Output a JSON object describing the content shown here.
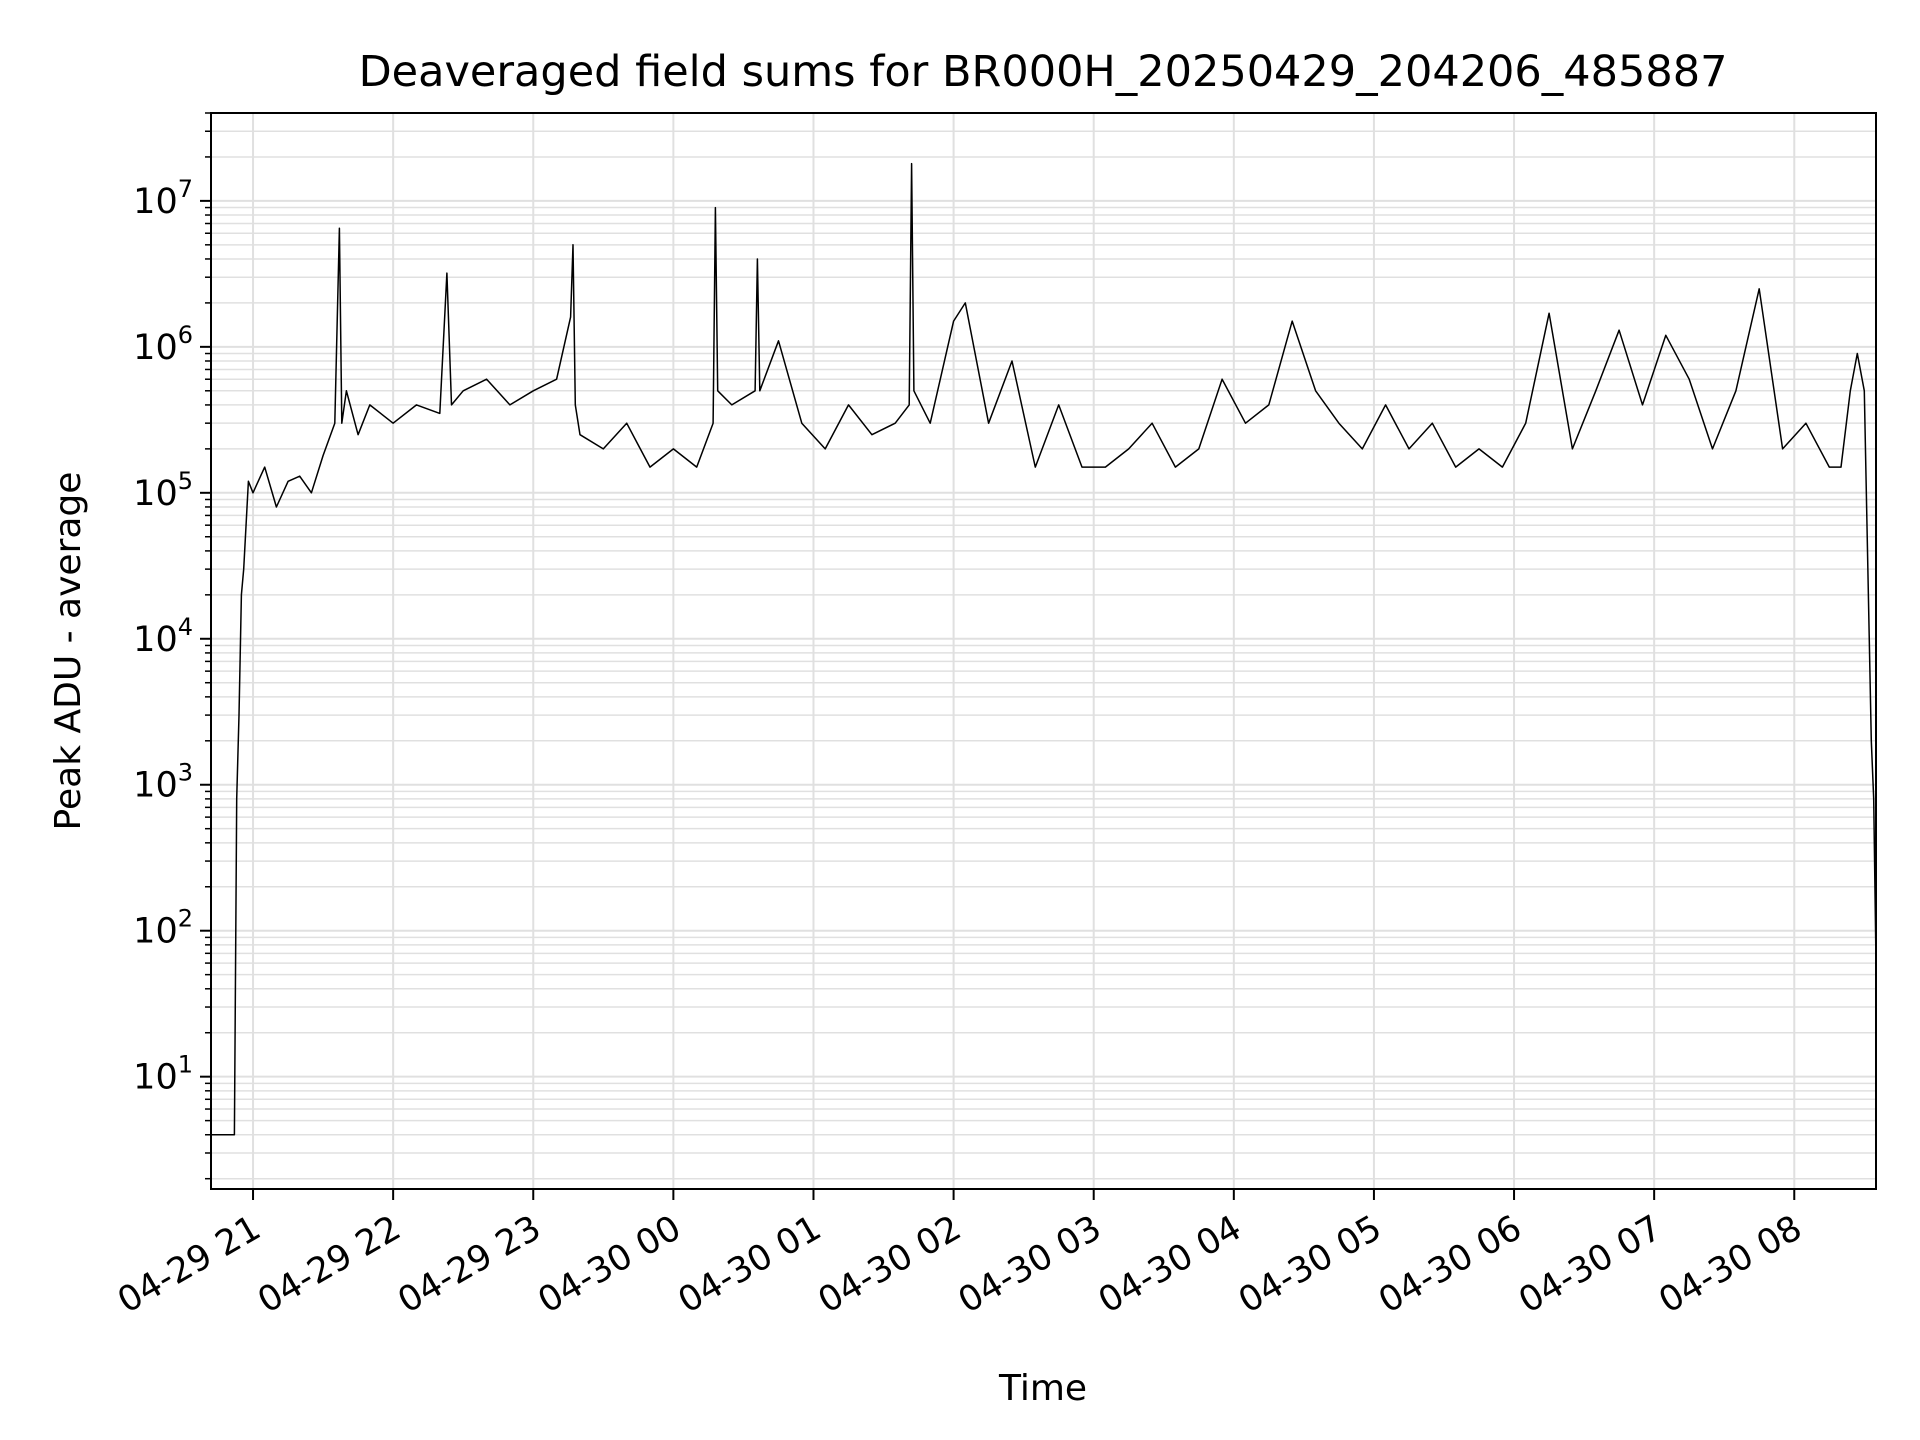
{
  "chart_data": {
    "type": "line",
    "title": "Deaveraged field sums for BR000H_20250429_204206_485887",
    "xlabel": "Time",
    "ylabel": "Peak ADU - average",
    "yscale": "log",
    "ylim": [
      1.7,
      40000000
    ],
    "xlim": [
      "2025-04-29 20:42",
      "2025-04-30 08:35"
    ],
    "grid": true,
    "line_color": "#000000",
    "x_ticks": [
      {
        "value": "2025-04-29 21:00",
        "label": "04-29 21"
      },
      {
        "value": "2025-04-29 22:00",
        "label": "04-29 22"
      },
      {
        "value": "2025-04-29 23:00",
        "label": "04-29 23"
      },
      {
        "value": "2025-04-30 00:00",
        "label": "04-30 00"
      },
      {
        "value": "2025-04-30 01:00",
        "label": "04-30 01"
      },
      {
        "value": "2025-04-30 02:00",
        "label": "04-30 02"
      },
      {
        "value": "2025-04-30 03:00",
        "label": "04-30 03"
      },
      {
        "value": "2025-04-30 04:00",
        "label": "04-30 04"
      },
      {
        "value": "2025-04-30 05:00",
        "label": "04-30 05"
      },
      {
        "value": "2025-04-30 06:00",
        "label": "04-30 06"
      },
      {
        "value": "2025-04-30 07:00",
        "label": "04-30 07"
      },
      {
        "value": "2025-04-30 08:00",
        "label": "04-30 08"
      }
    ],
    "y_ticks": [
      {
        "value": 10,
        "base": "10",
        "exp": "1"
      },
      {
        "value": 100,
        "base": "10",
        "exp": "2"
      },
      {
        "value": 1000,
        "base": "10",
        "exp": "3"
      },
      {
        "value": 10000,
        "base": "10",
        "exp": "4"
      },
      {
        "value": 100000,
        "base": "10",
        "exp": "5"
      },
      {
        "value": 1000000,
        "base": "10",
        "exp": "6"
      },
      {
        "value": 10000000,
        "base": "10",
        "exp": "7"
      }
    ],
    "series": [
      {
        "x": [
          "2025-04-29 20:42",
          "2025-04-29 20:52",
          "2025-04-29 20:53",
          "2025-04-29 20:54",
          "2025-04-29 20:55",
          "2025-04-29 20:56",
          "2025-04-29 20:58",
          "2025-04-29 21:00",
          "2025-04-29 21:05",
          "2025-04-29 21:10",
          "2025-04-29 21:15",
          "2025-04-29 21:20",
          "2025-04-29 21:25",
          "2025-04-29 21:30",
          "2025-04-29 21:35",
          "2025-04-29 21:37",
          "2025-04-29 21:38",
          "2025-04-29 21:40",
          "2025-04-29 21:45",
          "2025-04-29 21:50",
          "2025-04-29 22:00",
          "2025-04-29 22:10",
          "2025-04-29 22:20",
          "2025-04-29 22:23",
          "2025-04-29 22:25",
          "2025-04-29 22:30",
          "2025-04-29 22:40",
          "2025-04-29 22:50",
          "2025-04-29 23:00",
          "2025-04-29 23:10",
          "2025-04-29 23:16",
          "2025-04-29 23:17",
          "2025-04-29 23:18",
          "2025-04-29 23:20",
          "2025-04-29 23:30",
          "2025-04-29 23:40",
          "2025-04-29 23:50",
          "2025-04-30 00:00",
          "2025-04-30 00:10",
          "2025-04-30 00:17",
          "2025-04-30 00:18",
          "2025-04-30 00:19",
          "2025-04-30 00:25",
          "2025-04-30 00:35",
          "2025-04-30 00:36",
          "2025-04-30 00:37",
          "2025-04-30 00:45",
          "2025-04-30 00:55",
          "2025-04-30 01:05",
          "2025-04-30 01:15",
          "2025-04-30 01:25",
          "2025-04-30 01:35",
          "2025-04-30 01:41",
          "2025-04-30 01:42",
          "2025-04-30 01:43",
          "2025-04-30 01:50",
          "2025-04-30 02:00",
          "2025-04-30 02:05",
          "2025-04-30 02:15",
          "2025-04-30 02:25",
          "2025-04-30 02:35",
          "2025-04-30 02:45",
          "2025-04-30 02:55",
          "2025-04-30 03:05",
          "2025-04-30 03:15",
          "2025-04-30 03:25",
          "2025-04-30 03:35",
          "2025-04-30 03:45",
          "2025-04-30 03:55",
          "2025-04-30 04:05",
          "2025-04-30 04:15",
          "2025-04-30 04:25",
          "2025-04-30 04:35",
          "2025-04-30 04:45",
          "2025-04-30 04:55",
          "2025-04-30 05:05",
          "2025-04-30 05:15",
          "2025-04-30 05:25",
          "2025-04-30 05:35",
          "2025-04-30 05:45",
          "2025-04-30 05:55",
          "2025-04-30 06:05",
          "2025-04-30 06:15",
          "2025-04-30 06:25",
          "2025-04-30 06:35",
          "2025-04-30 06:45",
          "2025-04-30 06:55",
          "2025-04-30 07:05",
          "2025-04-30 07:15",
          "2025-04-30 07:25",
          "2025-04-30 07:35",
          "2025-04-30 07:45",
          "2025-04-30 07:55",
          "2025-04-30 08:05",
          "2025-04-30 08:15",
          "2025-04-30 08:20",
          "2025-04-30 08:24",
          "2025-04-30 08:27",
          "2025-04-30 08:30",
          "2025-04-30 08:33",
          "2025-04-30 08:34",
          "2025-04-30 08:35"
        ],
        "y": [
          4,
          4,
          800,
          3000,
          20000,
          30000,
          120000,
          100000,
          150000,
          80000,
          120000,
          130000,
          100000,
          180000,
          300000,
          6500000,
          300000,
          500000,
          250000,
          400000,
          300000,
          400000,
          350000,
          3200000,
          400000,
          500000,
          600000,
          400000,
          500000,
          600000,
          1600000,
          5000000,
          400000,
          250000,
          200000,
          300000,
          150000,
          200000,
          150000,
          300000,
          9000000,
          500000,
          400000,
          500000,
          4000000,
          500000,
          1100000,
          300000,
          200000,
          400000,
          250000,
          300000,
          400000,
          18000000,
          500000,
          300000,
          1500000,
          2000000,
          300000,
          800000,
          150000,
          400000,
          150000,
          150000,
          200000,
          300000,
          150000,
          200000,
          600000,
          300000,
          400000,
          1500000,
          500000,
          300000,
          200000,
          400000,
          200000,
          300000,
          150000,
          200000,
          150000,
          300000,
          1700000,
          200000,
          500000,
          1300000,
          400000,
          1200000,
          600000,
          200000,
          500000,
          2500000,
          200000,
          300000,
          150000,
          150000,
          500000,
          900000,
          500000,
          2000,
          800,
          60
        ]
      }
    ]
  }
}
